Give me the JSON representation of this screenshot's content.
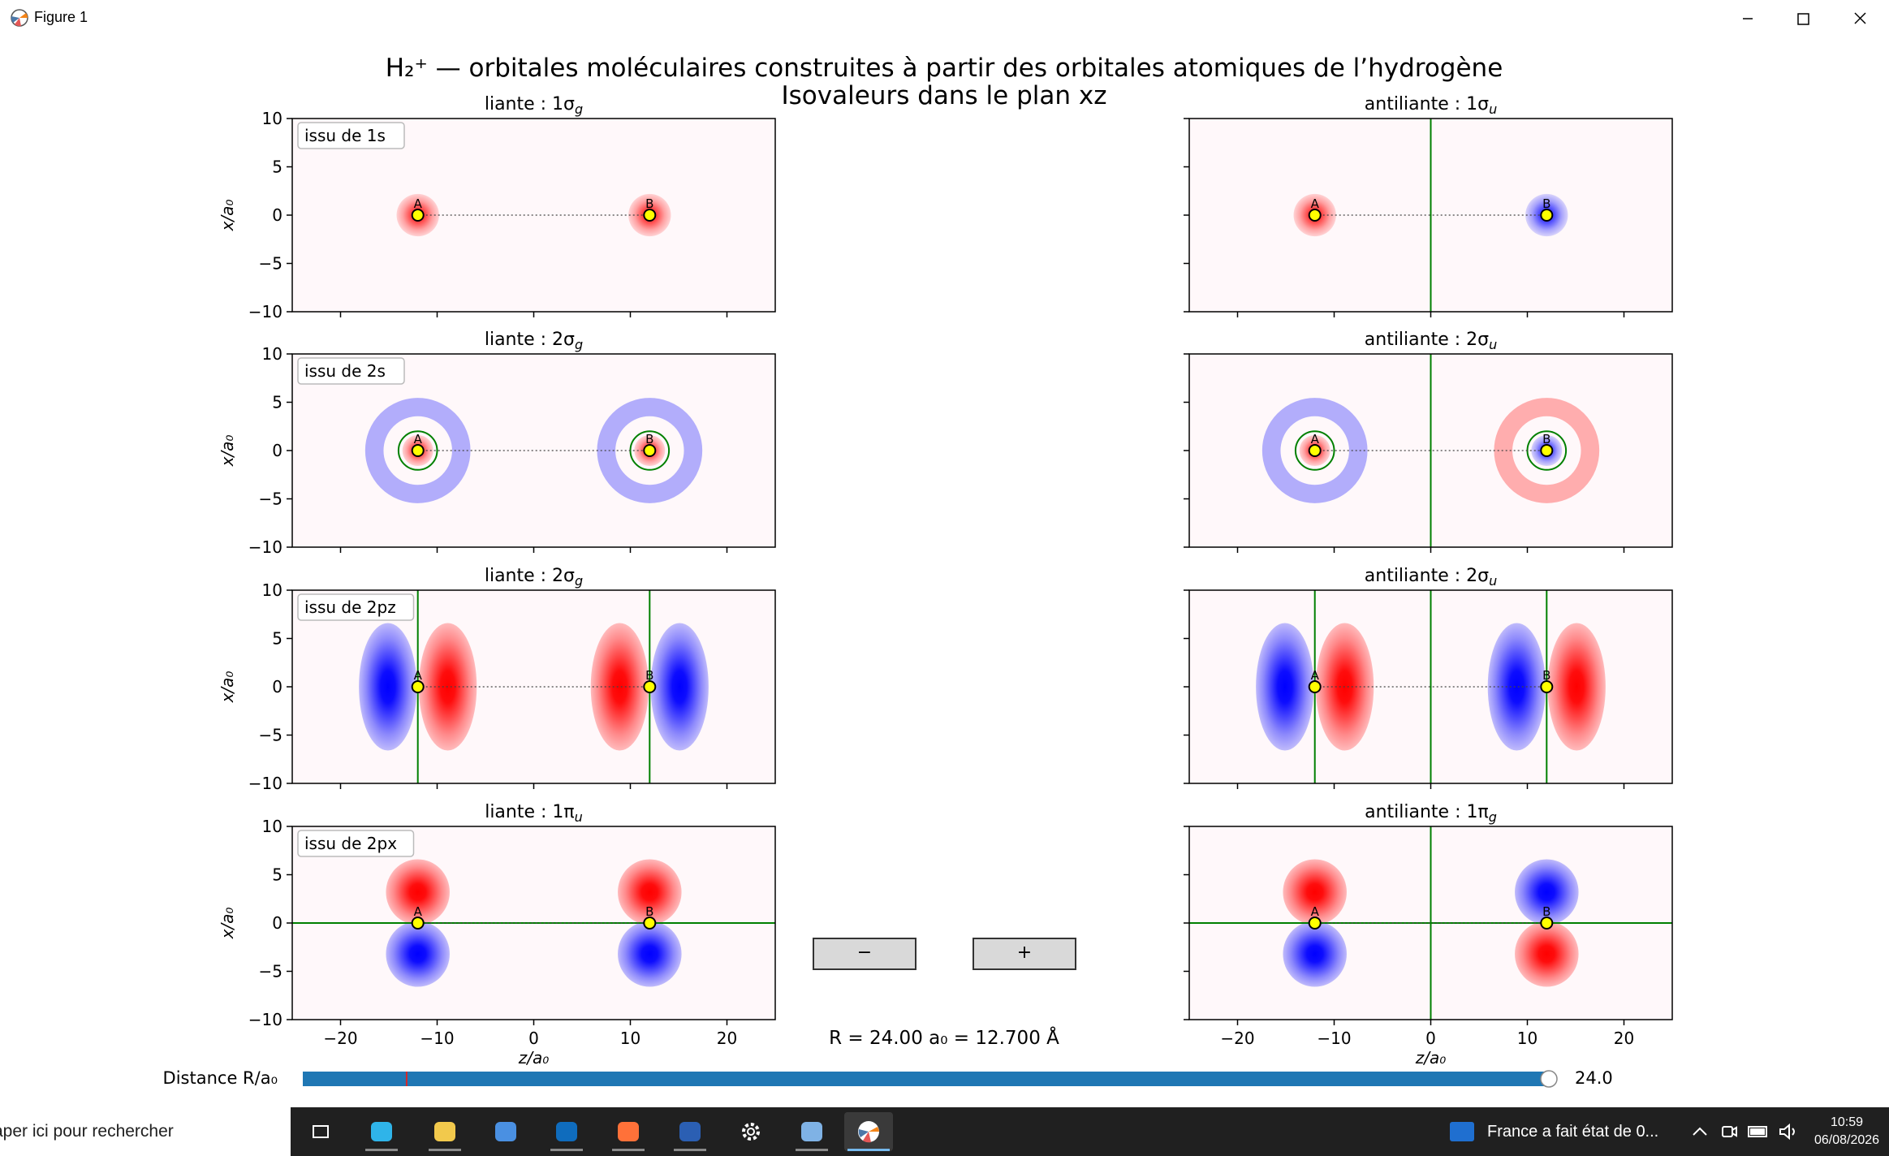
{
  "window": {
    "title": "Figure 1",
    "buttons": [
      "minimize-icon",
      "maximize-icon",
      "close-icon"
    ]
  },
  "figure": {
    "suptitle_line1": "H₂⁺ — orbitales moléculaires construites à partir des orbitales atomiques de l’hydrogène",
    "suptitle_line2": "Isovaleurs dans le plan xz",
    "ylabel": "x/a₀",
    "xlabel": "z/a₀",
    "xlim": [
      -25,
      25
    ],
    "ylim": [
      -10,
      10
    ],
    "xticks": [
      "−20",
      "−10",
      "0",
      "10",
      "20"
    ],
    "yticks": [
      "10",
      "5",
      "0",
      "−5",
      "−10"
    ],
    "nucleus_labels": [
      "A",
      "B"
    ],
    "nuclei_z": [
      -12,
      12
    ],
    "rows": [
      {
        "source": "issu de 1s",
        "left": {
          "kind": "liante",
          "label": "liante : 1σ",
          "sub": "g",
          "orbital": "1s",
          "sign": 1
        },
        "right": {
          "kind": "antiliante",
          "label": "antiliante : 1σ",
          "sub": "u",
          "orbital": "1s",
          "sign": -1
        }
      },
      {
        "source": "issu de 2s",
        "left": {
          "kind": "liante",
          "label": "liante : 2σ",
          "sub": "g",
          "orbital": "2s",
          "sign": 1
        },
        "right": {
          "kind": "antiliante",
          "label": "antiliante : 2σ",
          "sub": "u",
          "orbital": "2s",
          "sign": -1
        }
      },
      {
        "source": "issu de 2pz",
        "left": {
          "kind": "liante",
          "label": "liante : 2σ",
          "sub": "g",
          "orbital": "2pz",
          "sign": 1
        },
        "right": {
          "kind": "antiliante",
          "label": "antiliante : 2σ",
          "sub": "u",
          "orbital": "2pz",
          "sign": -1
        }
      },
      {
        "source": "issu de 2px",
        "left": {
          "kind": "liante",
          "label": "liante : 1π",
          "sub": "u",
          "orbital": "2px",
          "sign": 1
        },
        "right": {
          "kind": "antiliante",
          "label": "antiliante : 1π",
          "sub": "g",
          "orbital": "2px",
          "sign": -1
        }
      }
    ],
    "buttons": {
      "minus": "−",
      "plus": "+"
    },
    "readout": "R = 24.00 a₀ = 12.700 Å",
    "slider": {
      "label": "Distance R/a₀",
      "value": 24.0,
      "value_text": "24.0",
      "min": 0,
      "max": 24.0,
      "marker": 2.0
    },
    "colors": {
      "positive": "#ff0000",
      "negative": "#0000ff",
      "node": "#008000",
      "slider": "#1f77b4",
      "nucleus": "#ffff00"
    }
  },
  "taskbar": {
    "search_placeholder": "aper ici pour rechercher",
    "apps": [
      "task-view-icon",
      "edge-icon",
      "file-explorer-icon",
      "store-icon",
      "outlook-icon",
      "firefox-icon",
      "powershell-icon",
      "settings-icon",
      "notepad-icon",
      "matplotlib-icon"
    ],
    "news_text": "France a fait état de 0...",
    "time": "10:59",
    "date": "06/08/2026"
  }
}
